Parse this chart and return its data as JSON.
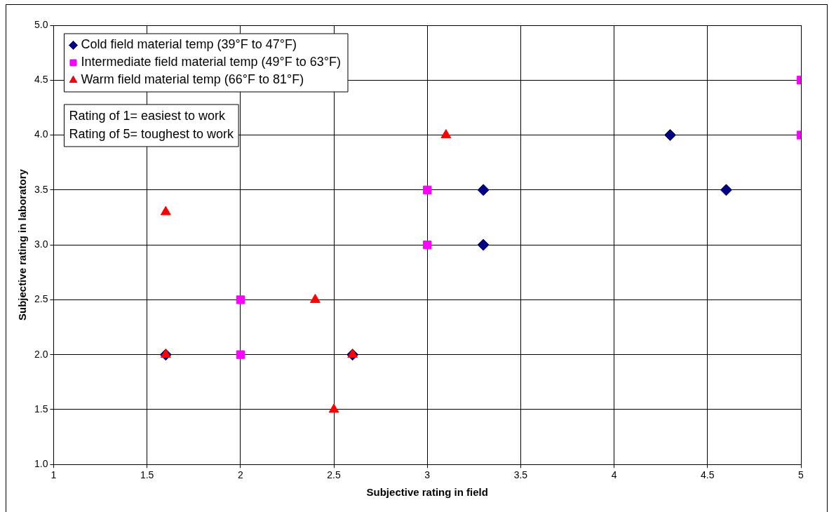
{
  "chart_data": {
    "type": "scatter",
    "xlabel": "Subjective rating in field",
    "ylabel": "Subjective rating in laboratory",
    "xlim": [
      1,
      5
    ],
    "xticks": [
      1,
      1.5,
      2,
      2.5,
      3,
      3.5,
      4,
      4.5,
      5
    ],
    "ylim": [
      1,
      5
    ],
    "yticks": [
      {
        "value": 1,
        "label": "1.0"
      },
      {
        "value": 1.5,
        "label": "1.5"
      },
      {
        "value": 2,
        "label": "2.0"
      },
      {
        "value": 2.5,
        "label": "2.5"
      },
      {
        "value": 3,
        "label": "3.0"
      },
      {
        "value": 3.5,
        "label": "3.5"
      },
      {
        "value": 4,
        "label": "4.0"
      },
      {
        "value": 4.5,
        "label": "4.5"
      },
      {
        "value": 5,
        "label": "5.0"
      }
    ],
    "grid": true,
    "legend": "top left",
    "annotations": [
      "Rating of 1= easiest to work",
      "Rating of 5= toughest to work"
    ],
    "series": [
      {
        "name": "Cold field material temp (39°F to 47°F)",
        "color": "#000080",
        "marker": "diamond",
        "x": [
          1.6,
          2.6,
          3.3,
          3.3,
          4.3,
          4.6
        ],
        "values": [
          2.0,
          2.0,
          3.5,
          3.0,
          4.0,
          3.5
        ]
      },
      {
        "name": "Intermediate field material temp (49°F to 63°F)",
        "color": "#ff00ff",
        "marker": "square",
        "x": [
          2,
          2,
          3,
          3,
          5,
          5
        ],
        "values": [
          2.5,
          2.0,
          3.5,
          3.0,
          4.5,
          4.0
        ]
      },
      {
        "name": "Warm field material temp (66°F to 81°F)",
        "color": "#ff0000",
        "marker": "triangle",
        "x": [
          1.6,
          1.6,
          2.4,
          2.5,
          2.6,
          3.1
        ],
        "values": [
          3.3,
          2.0,
          2.5,
          1.5,
          2.0,
          4.0
        ]
      }
    ]
  }
}
